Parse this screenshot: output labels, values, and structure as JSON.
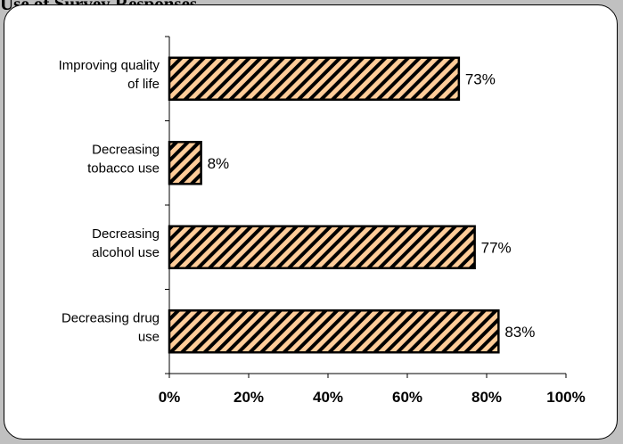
{
  "header": {
    "partial_title": "Use of Survey Responses"
  },
  "chart_data": {
    "type": "bar",
    "orientation": "horizontal",
    "categories": [
      [
        "Improving quality",
        "of life"
      ],
      [
        "Decreasing",
        "tobacco use"
      ],
      [
        "Decreasing",
        "alcohol use"
      ],
      [
        "Decreasing drug",
        "use"
      ]
    ],
    "values": [
      73,
      8,
      77,
      83
    ],
    "data_labels": [
      "73%",
      "8%",
      "77%",
      "83%"
    ],
    "title": "",
    "xlabel": "",
    "ylabel": "",
    "xlim": [
      0,
      100
    ],
    "x_ticks": [
      "0%",
      "20%",
      "40%",
      "60%",
      "80%",
      "100%"
    ],
    "grid": false,
    "legend": "none",
    "colors": {
      "bar_fill": "#FFCC99",
      "bar_hatch": "#000000"
    }
  }
}
